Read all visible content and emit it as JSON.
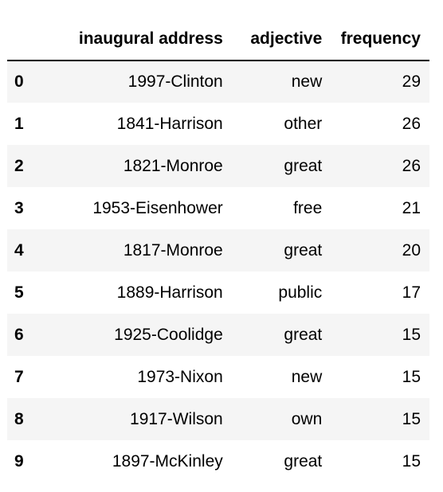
{
  "table": {
    "columns": {
      "index": "",
      "address": "inaugural address",
      "adjective": "adjective",
      "frequency": "frequency"
    },
    "rows": [
      {
        "index": "0",
        "address": "1997-Clinton",
        "adjective": "new",
        "frequency": "29"
      },
      {
        "index": "1",
        "address": "1841-Harrison",
        "adjective": "other",
        "frequency": "26"
      },
      {
        "index": "2",
        "address": "1821-Monroe",
        "adjective": "great",
        "frequency": "26"
      },
      {
        "index": "3",
        "address": "1953-Eisenhower",
        "adjective": "free",
        "frequency": "21"
      },
      {
        "index": "4",
        "address": "1817-Monroe",
        "adjective": "great",
        "frequency": "20"
      },
      {
        "index": "5",
        "address": "1889-Harrison",
        "adjective": "public",
        "frequency": "17"
      },
      {
        "index": "6",
        "address": "1925-Coolidge",
        "adjective": "great",
        "frequency": "15"
      },
      {
        "index": "7",
        "address": "1973-Nixon",
        "adjective": "new",
        "frequency": "15"
      },
      {
        "index": "8",
        "address": "1917-Wilson",
        "adjective": "own",
        "frequency": "15"
      },
      {
        "index": "9",
        "address": "1897-McKinley",
        "adjective": "great",
        "frequency": "15"
      }
    ]
  }
}
